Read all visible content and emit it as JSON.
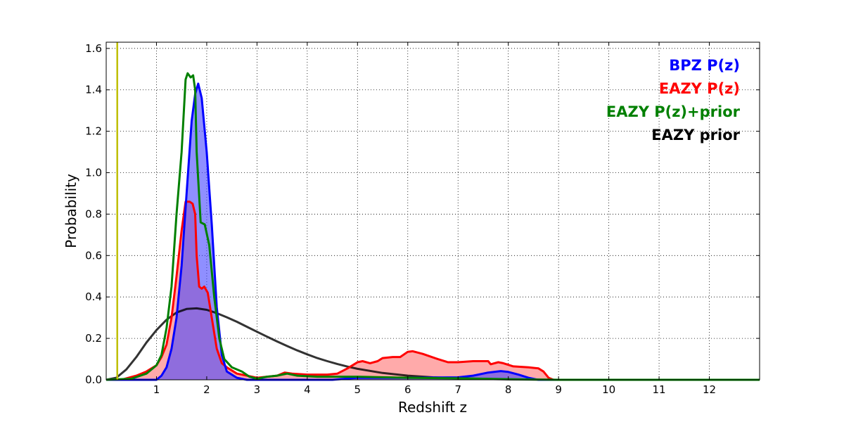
{
  "chart_data": {
    "type": "area",
    "xlabel": "Redshift z",
    "ylabel": "Probability",
    "xlim": [
      0,
      13
    ],
    "ylim": [
      0,
      1.63
    ],
    "grid": true,
    "legend_position": "top-right",
    "xticks": [
      1,
      2,
      3,
      4,
      5,
      6,
      7,
      8,
      9,
      10,
      11,
      12
    ],
    "yticks": [
      0.0,
      0.2,
      0.4,
      0.6,
      0.8,
      1.0,
      1.2,
      1.4,
      1.6
    ],
    "xtick_labels": [
      "1",
      "2",
      "3",
      "4",
      "5",
      "6",
      "7",
      "8",
      "9",
      "10",
      "11",
      "12"
    ],
    "ytick_labels": [
      "0.0",
      "0.2",
      "0.4",
      "0.6",
      "0.8",
      "1.0",
      "1.2",
      "1.4",
      "1.6"
    ],
    "reference_line": {
      "x": 0.22,
      "color": "#bfbf00"
    },
    "series": [
      {
        "name": "EAZY prior",
        "label": "EAZY prior",
        "color": "#000000",
        "filled": false,
        "opacity": 0.8,
        "points": [
          [
            0.0,
            0.0
          ],
          [
            0.2,
            0.01
          ],
          [
            0.4,
            0.05
          ],
          [
            0.6,
            0.11
          ],
          [
            0.8,
            0.18
          ],
          [
            1.0,
            0.24
          ],
          [
            1.2,
            0.29
          ],
          [
            1.4,
            0.325
          ],
          [
            1.6,
            0.342
          ],
          [
            1.8,
            0.345
          ],
          [
            2.0,
            0.338
          ],
          [
            2.2,
            0.322
          ],
          [
            2.4,
            0.302
          ],
          [
            2.6,
            0.28
          ],
          [
            2.8,
            0.256
          ],
          [
            3.0,
            0.232
          ],
          [
            3.2,
            0.208
          ],
          [
            3.4,
            0.185
          ],
          [
            3.6,
            0.163
          ],
          [
            3.8,
            0.142
          ],
          [
            4.0,
            0.123
          ],
          [
            4.2,
            0.105
          ],
          [
            4.4,
            0.09
          ],
          [
            4.6,
            0.076
          ],
          [
            4.8,
            0.064
          ],
          [
            5.0,
            0.053
          ],
          [
            5.5,
            0.033
          ],
          [
            6.0,
            0.02
          ],
          [
            6.5,
            0.012
          ],
          [
            7.0,
            0.007
          ],
          [
            7.5,
            0.004
          ],
          [
            8.0,
            0.002
          ],
          [
            9.0,
            0.0
          ],
          [
            12.0,
            0.0
          ],
          [
            13.0,
            0.0
          ]
        ]
      },
      {
        "name": "EAZY P(z)",
        "label": "EAZY P(z)",
        "color": "#ff0000",
        "fill": "#ffaaaa",
        "filled": true,
        "points": [
          [
            0.0,
            0.0
          ],
          [
            0.3,
            0.0
          ],
          [
            0.6,
            0.02
          ],
          [
            0.8,
            0.04
          ],
          [
            1.0,
            0.07
          ],
          [
            1.1,
            0.11
          ],
          [
            1.2,
            0.17
          ],
          [
            1.3,
            0.3
          ],
          [
            1.4,
            0.5
          ],
          [
            1.5,
            0.72
          ],
          [
            1.58,
            0.86
          ],
          [
            1.66,
            0.86
          ],
          [
            1.72,
            0.85
          ],
          [
            1.77,
            0.8
          ],
          [
            1.8,
            0.6
          ],
          [
            1.85,
            0.45
          ],
          [
            1.9,
            0.44
          ],
          [
            1.95,
            0.45
          ],
          [
            2.02,
            0.42
          ],
          [
            2.1,
            0.3
          ],
          [
            2.2,
            0.15
          ],
          [
            2.3,
            0.08
          ],
          [
            2.4,
            0.06
          ],
          [
            2.6,
            0.03
          ],
          [
            2.8,
            0.02
          ],
          [
            3.0,
            0.01
          ],
          [
            3.2,
            0.015
          ],
          [
            3.4,
            0.02
          ],
          [
            3.55,
            0.035
          ],
          [
            3.7,
            0.03
          ],
          [
            4.0,
            0.025
          ],
          [
            4.4,
            0.025
          ],
          [
            4.6,
            0.03
          ],
          [
            4.8,
            0.055
          ],
          [
            5.0,
            0.085
          ],
          [
            5.1,
            0.09
          ],
          [
            5.25,
            0.08
          ],
          [
            5.4,
            0.09
          ],
          [
            5.5,
            0.105
          ],
          [
            5.7,
            0.11
          ],
          [
            5.85,
            0.11
          ],
          [
            6.0,
            0.135
          ],
          [
            6.1,
            0.138
          ],
          [
            6.3,
            0.125
          ],
          [
            6.6,
            0.1
          ],
          [
            6.8,
            0.085
          ],
          [
            7.0,
            0.085
          ],
          [
            7.3,
            0.09
          ],
          [
            7.6,
            0.09
          ],
          [
            7.65,
            0.075
          ],
          [
            7.8,
            0.085
          ],
          [
            7.9,
            0.08
          ],
          [
            8.1,
            0.065
          ],
          [
            8.4,
            0.06
          ],
          [
            8.6,
            0.055
          ],
          [
            8.7,
            0.04
          ],
          [
            8.8,
            0.01
          ],
          [
            8.9,
            0.0
          ],
          [
            13.0,
            0.0
          ]
        ]
      },
      {
        "name": "BPZ P(z)",
        "label": "BPZ P(z)",
        "color": "#0000ff",
        "fill": "#4444ff",
        "filled": true,
        "opacity": 0.6,
        "points": [
          [
            0.0,
            0.0
          ],
          [
            1.0,
            0.0
          ],
          [
            1.1,
            0.02
          ],
          [
            1.2,
            0.06
          ],
          [
            1.3,
            0.15
          ],
          [
            1.4,
            0.3
          ],
          [
            1.5,
            0.55
          ],
          [
            1.6,
            0.9
          ],
          [
            1.7,
            1.25
          ],
          [
            1.77,
            1.38
          ],
          [
            1.83,
            1.43
          ],
          [
            1.9,
            1.36
          ],
          [
            2.0,
            1.1
          ],
          [
            2.1,
            0.75
          ],
          [
            2.2,
            0.35
          ],
          [
            2.3,
            0.12
          ],
          [
            2.4,
            0.04
          ],
          [
            2.6,
            0.01
          ],
          [
            2.8,
            0.0
          ],
          [
            4.5,
            0.0
          ],
          [
            5.0,
            0.01
          ],
          [
            6.0,
            0.01
          ],
          [
            7.0,
            0.012
          ],
          [
            7.3,
            0.02
          ],
          [
            7.6,
            0.035
          ],
          [
            7.85,
            0.042
          ],
          [
            8.0,
            0.038
          ],
          [
            8.2,
            0.025
          ],
          [
            8.4,
            0.01
          ],
          [
            8.6,
            0.0
          ],
          [
            13.0,
            0.0
          ]
        ]
      },
      {
        "name": "EAZY P(z)+prior",
        "label": "EAZY P(z)+prior",
        "color": "#008000",
        "filled": false,
        "points": [
          [
            0.0,
            0.0
          ],
          [
            0.5,
            0.005
          ],
          [
            0.8,
            0.03
          ],
          [
            1.0,
            0.07
          ],
          [
            1.1,
            0.12
          ],
          [
            1.2,
            0.25
          ],
          [
            1.3,
            0.45
          ],
          [
            1.4,
            0.8
          ],
          [
            1.5,
            1.1
          ],
          [
            1.58,
            1.45
          ],
          [
            1.62,
            1.48
          ],
          [
            1.68,
            1.46
          ],
          [
            1.73,
            1.47
          ],
          [
            1.77,
            1.4
          ],
          [
            1.8,
            1.1
          ],
          [
            1.88,
            0.76
          ],
          [
            1.96,
            0.75
          ],
          [
            2.05,
            0.65
          ],
          [
            2.15,
            0.4
          ],
          [
            2.25,
            0.2
          ],
          [
            2.35,
            0.1
          ],
          [
            2.5,
            0.06
          ],
          [
            2.7,
            0.04
          ],
          [
            2.85,
            0.015
          ],
          [
            3.0,
            0.005
          ],
          [
            3.2,
            0.015
          ],
          [
            3.4,
            0.02
          ],
          [
            3.6,
            0.03
          ],
          [
            3.8,
            0.02
          ],
          [
            4.2,
            0.015
          ],
          [
            5.0,
            0.015
          ],
          [
            6.0,
            0.01
          ],
          [
            7.0,
            0.007
          ],
          [
            8.0,
            0.003
          ],
          [
            9.0,
            0.0
          ],
          [
            13.0,
            0.0
          ]
        ]
      }
    ]
  }
}
